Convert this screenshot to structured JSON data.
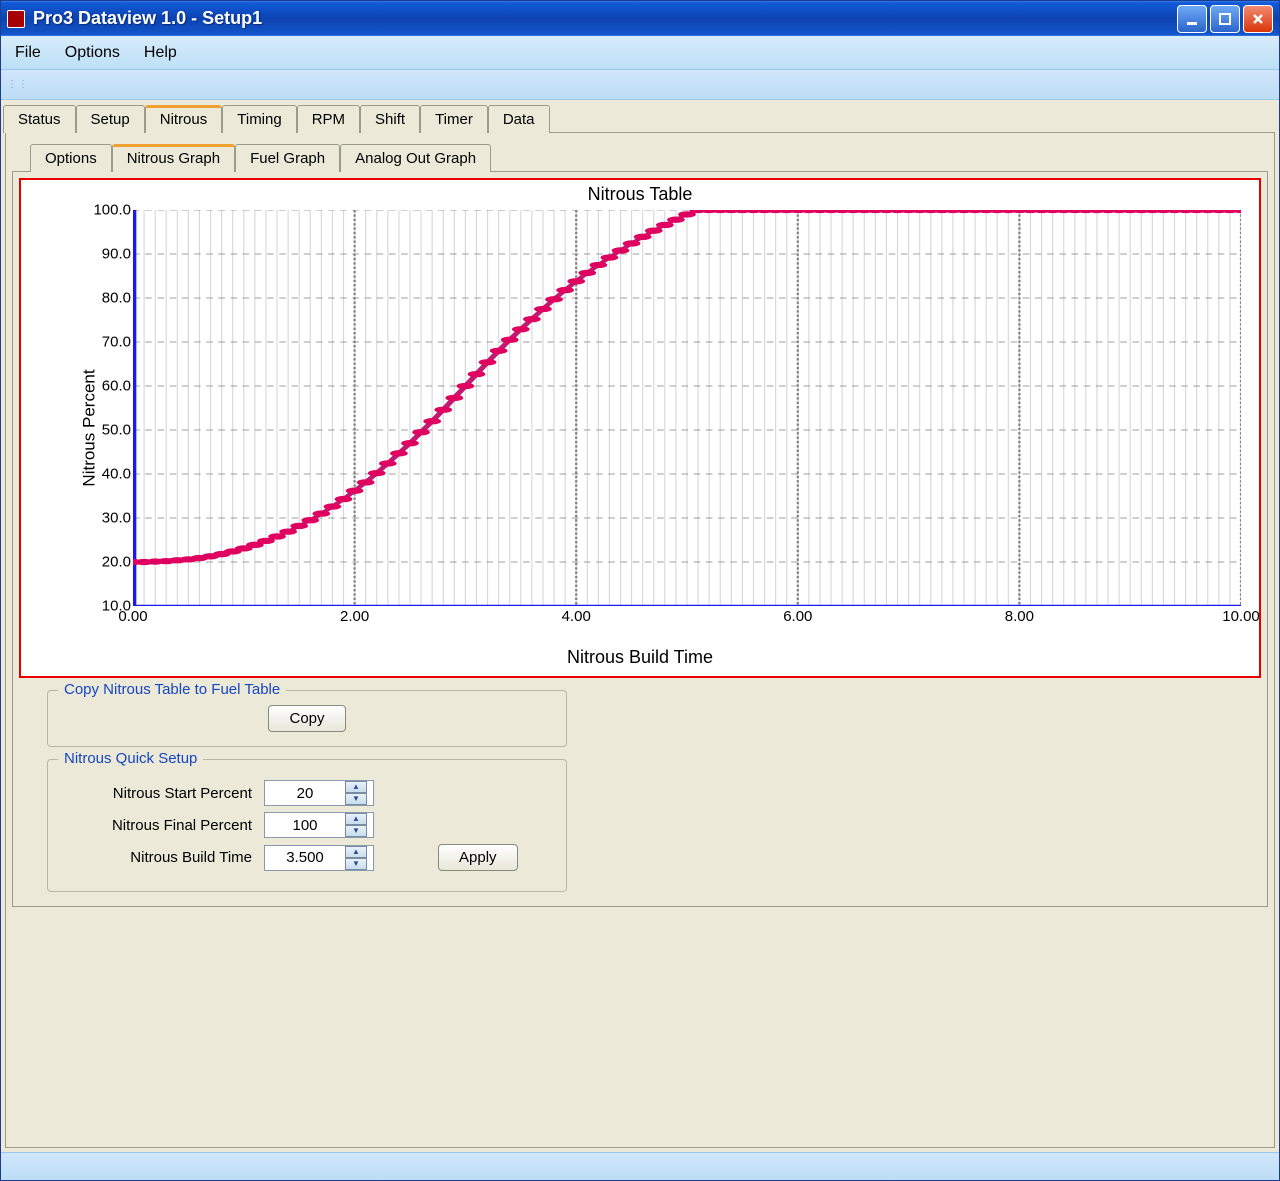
{
  "window": {
    "title": "Pro3 Dataview 1.0  -  Setup1"
  },
  "menu": {
    "file": "File",
    "options": "Options",
    "help": "Help"
  },
  "main_tabs": {
    "items": [
      "Status",
      "Setup",
      "Nitrous",
      "Timing",
      "RPM",
      "Shift",
      "Timer",
      "Data"
    ],
    "active_index": 2
  },
  "sub_tabs": {
    "items": [
      "Options",
      "Nitrous Graph",
      "Fuel Graph",
      "Analog Out Graph"
    ],
    "active_index": 1
  },
  "chart": {
    "type": "line",
    "title": "Nitrous Table",
    "xlabel": "Nitrous Build Time",
    "ylabel": "Nitrous Percent",
    "xlim": [
      0,
      10
    ],
    "ylim": [
      10,
      100
    ],
    "xtick_step": 2.0,
    "ytick_step": 10.0,
    "xtick_labels": [
      "0.00",
      "2.00",
      "4.00",
      "6.00",
      "8.00",
      "10.00"
    ],
    "ytick_labels": [
      "10.0",
      "20.0",
      "30.0",
      "40.0",
      "50.0",
      "60.0",
      "70.0",
      "80.0",
      "90.0",
      "100.0"
    ],
    "axis_color": "#1a1af0",
    "axis_width": 3,
    "grid_color": "#808080",
    "grid_dash": "6,5",
    "minor_grid_color": "#d7d7d7",
    "background_color": "#ffffff",
    "line_color": "#c01a72",
    "marker_color": "#e00060",
    "marker_radius": 4,
    "line_width": 3,
    "title_fontsize": 18,
    "label_fontsize": 17,
    "tick_fontsize": 15,
    "points": [
      [
        0.0,
        20.0
      ],
      [
        0.1,
        20.0
      ],
      [
        0.2,
        20.1
      ],
      [
        0.3,
        20.2
      ],
      [
        0.4,
        20.4
      ],
      [
        0.5,
        20.6
      ],
      [
        0.6,
        20.9
      ],
      [
        0.7,
        21.3
      ],
      [
        0.8,
        21.8
      ],
      [
        0.9,
        22.4
      ],
      [
        1.0,
        23.1
      ],
      [
        1.1,
        23.9
      ],
      [
        1.2,
        24.8
      ],
      [
        1.3,
        25.8
      ],
      [
        1.4,
        26.9
      ],
      [
        1.5,
        28.2
      ],
      [
        1.6,
        29.5
      ],
      [
        1.7,
        31.0
      ],
      [
        1.8,
        32.6
      ],
      [
        1.9,
        34.3
      ],
      [
        2.0,
        36.2
      ],
      [
        2.1,
        38.1
      ],
      [
        2.2,
        40.2
      ],
      [
        2.3,
        42.4
      ],
      [
        2.4,
        44.7
      ],
      [
        2.5,
        47.0
      ],
      [
        2.6,
        49.5
      ],
      [
        2.7,
        52.0
      ],
      [
        2.8,
        54.6
      ],
      [
        2.9,
        57.3
      ],
      [
        3.0,
        60.0
      ],
      [
        3.1,
        62.7
      ],
      [
        3.2,
        65.4
      ],
      [
        3.3,
        68.0
      ],
      [
        3.4,
        70.5
      ],
      [
        3.5,
        72.9
      ],
      [
        3.6,
        75.2
      ],
      [
        3.7,
        77.5
      ],
      [
        3.8,
        79.7
      ],
      [
        3.9,
        81.8
      ],
      [
        4.0,
        83.8
      ],
      [
        4.1,
        85.7
      ],
      [
        4.2,
        87.5
      ],
      [
        4.3,
        89.2
      ],
      [
        4.4,
        90.8
      ],
      [
        4.5,
        92.4
      ],
      [
        4.6,
        93.9
      ],
      [
        4.7,
        95.3
      ],
      [
        4.8,
        96.6
      ],
      [
        4.9,
        97.8
      ],
      [
        5.0,
        99.0
      ],
      [
        5.1,
        100.0
      ],
      [
        5.2,
        100.0
      ],
      [
        5.3,
        100.0
      ],
      [
        5.4,
        100.0
      ],
      [
        5.5,
        100.0
      ],
      [
        5.6,
        100.0
      ],
      [
        5.7,
        100.0
      ],
      [
        5.8,
        100.0
      ],
      [
        5.9,
        100.0
      ],
      [
        6.0,
        100.0
      ],
      [
        6.1,
        100.0
      ],
      [
        6.2,
        100.0
      ],
      [
        6.3,
        100.0
      ],
      [
        6.4,
        100.0
      ],
      [
        6.5,
        100.0
      ],
      [
        6.6,
        100.0
      ],
      [
        6.7,
        100.0
      ],
      [
        6.8,
        100.0
      ],
      [
        6.9,
        100.0
      ],
      [
        7.0,
        100.0
      ],
      [
        7.1,
        100.0
      ],
      [
        7.2,
        100.0
      ],
      [
        7.3,
        100.0
      ],
      [
        7.4,
        100.0
      ],
      [
        7.5,
        100.0
      ],
      [
        7.6,
        100.0
      ],
      [
        7.7,
        100.0
      ],
      [
        7.8,
        100.0
      ],
      [
        7.9,
        100.0
      ],
      [
        8.0,
        100.0
      ],
      [
        8.1,
        100.0
      ],
      [
        8.2,
        100.0
      ],
      [
        8.3,
        100.0
      ],
      [
        8.4,
        100.0
      ],
      [
        8.5,
        100.0
      ],
      [
        8.6,
        100.0
      ],
      [
        8.7,
        100.0
      ],
      [
        8.8,
        100.0
      ],
      [
        8.9,
        100.0
      ],
      [
        9.0,
        100.0
      ],
      [
        9.1,
        100.0
      ],
      [
        9.2,
        100.0
      ],
      [
        9.3,
        100.0
      ],
      [
        9.4,
        100.0
      ],
      [
        9.5,
        100.0
      ],
      [
        9.6,
        100.0
      ],
      [
        9.7,
        100.0
      ],
      [
        9.8,
        100.0
      ],
      [
        9.9,
        100.0
      ],
      [
        10.0,
        100.0
      ]
    ]
  },
  "copy_group": {
    "legend": "Copy Nitrous Table to Fuel Table",
    "button": "Copy"
  },
  "quick_setup": {
    "legend": "Nitrous Quick Setup",
    "start_label": "Nitrous Start Percent",
    "start_value": "20",
    "final_label": "Nitrous Final Percent",
    "final_value": "100",
    "build_label": "Nitrous Build Time",
    "build_value": "3.500",
    "apply": "Apply"
  }
}
